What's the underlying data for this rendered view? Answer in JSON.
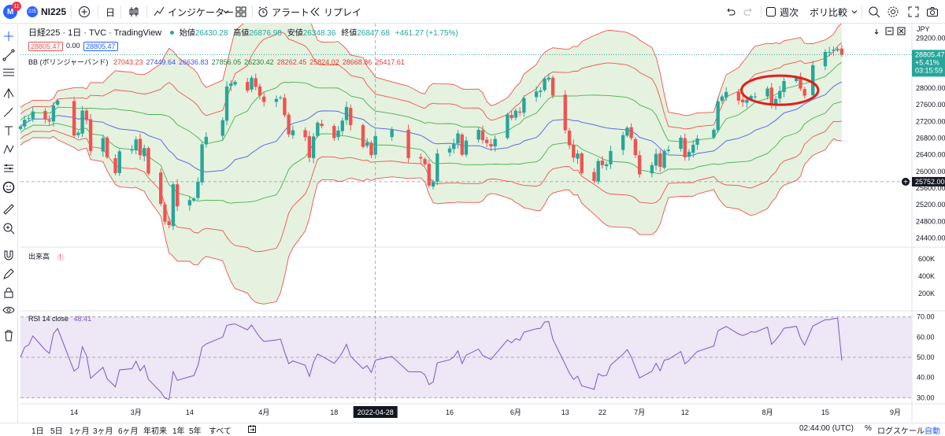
{
  "topbar": {
    "avatar_letter": "M",
    "notification_count": "11",
    "symbol_badge": "225",
    "symbol": "NI225",
    "interval": "日",
    "indicators_label": "インジケーター",
    "alert_label": "アラート",
    "replay_label": "リプレイ",
    "layout_name": "週次",
    "layout_sub": "ボリ比較"
  },
  "legend": {
    "title": "日経225 · 1日 · TVC · TradingView",
    "open_label": "始値",
    "open": "26430.28",
    "high_label": "高値",
    "high": "26876.95",
    "low_label": "安値",
    "low": "26348.36",
    "close_label": "終値",
    "close": "26847.68",
    "change": "+461.27 (+1.75%)",
    "sell_price": "28805.47",
    "spread": "0.00",
    "buy_price": "28805.47",
    "bb_label": "BB (ボリンジャーバンド)",
    "bb_values": [
      {
        "value": "27043.23",
        "color": "#e53935"
      },
      {
        "value": "27449.64",
        "color": "#3f51d8"
      },
      {
        "value": "26636.83",
        "color": "#3f51d8"
      },
      {
        "value": "27856.05",
        "color": "#2e7d32"
      },
      {
        "value": "26230.42",
        "color": "#2e7d32"
      },
      {
        "value": "28262.45",
        "color": "#e53935"
      },
      {
        "value": "25824.02",
        "color": "#e53935"
      },
      {
        "value": "28668.86",
        "color": "#e53935"
      },
      {
        "value": "25417.61",
        "color": "#e53935"
      }
    ],
    "volume_label": "出来高",
    "volume_warning": "!",
    "rsi_label": "RSI 14 close",
    "rsi_value": "48.41"
  },
  "price_axis": {
    "currency": "JPY",
    "ticks": [
      "29200.00",
      "28800.00",
      "28400.00",
      "28000.00",
      "27600.00",
      "27200.00",
      "26800.00",
      "26400.00",
      "26000.00",
      "25600.00",
      "25200.00",
      "24800.00",
      "24400.00"
    ],
    "current_price": "28805.47",
    "current_change": "+5.41%",
    "countdown": "03:15:59",
    "crosshair_price": "25752.00",
    "volume_ticks": [
      "600K",
      "400K",
      "200K"
    ],
    "rsi_ticks": [
      "70.00",
      "60.00",
      "50.00",
      "40.00",
      "30.00"
    ]
  },
  "time_axis": {
    "labels": [
      "14",
      "3月",
      "14",
      "4月",
      "18",
      "16",
      "6月",
      "13",
      "22",
      "7月",
      "12",
      "8月",
      "15",
      "9月"
    ],
    "crosshair_date": "2022-04-28"
  },
  "bottombar": {
    "ranges": [
      "1日",
      "5日",
      "1ヶ月",
      "3ヶ月",
      "6ヶ月",
      "年初来",
      "1年",
      "5年",
      "すべて"
    ],
    "clock": "02:44:00 (UTC)",
    "percent": "%",
    "log_scale": "ログスケール",
    "auto": "自動"
  },
  "colors": {
    "up": "#26a69a",
    "down": "#ef5350",
    "bb_fill": "#e5f2e0",
    "bb_outer": "#ef5350",
    "bb_mid": "#5b6ee1",
    "bb_green": "#4caf50",
    "rsi_line": "#7e57c2",
    "rsi_band": "#ede7f6",
    "annotation": "#e01f1f",
    "accent": "#2962ff"
  },
  "chart_data": [
    {
      "type": "candlestick",
      "title": "日経225 · 1日 · TVC",
      "y_unit": "JPY",
      "ylim": [
        24200,
        29550
      ],
      "x_range": [
        "2022-02-01",
        "2022-09-05"
      ],
      "x": [
        "2022-02-01",
        "2022-02-02",
        "2022-02-03",
        "2022-02-04",
        "2022-02-07",
        "2022-02-08",
        "2022-02-09",
        "2022-02-10",
        "2022-02-14",
        "2022-02-15",
        "2022-02-16",
        "2022-02-17",
        "2022-02-18",
        "2022-02-21",
        "2022-02-22",
        "2022-02-24",
        "2022-02-25",
        "2022-02-28",
        "2022-03-01",
        "2022-03-02",
        "2022-03-03",
        "2022-03-04",
        "2022-03-07",
        "2022-03-08",
        "2022-03-09",
        "2022-03-10",
        "2022-03-11",
        "2022-03-14",
        "2022-03-15",
        "2022-03-16",
        "2022-03-17",
        "2022-03-18",
        "2022-03-22",
        "2022-03-23",
        "2022-03-24",
        "2022-03-25",
        "2022-03-28",
        "2022-03-29",
        "2022-03-30",
        "2022-03-31",
        "2022-04-01",
        "2022-04-04",
        "2022-04-05",
        "2022-04-06",
        "2022-04-07",
        "2022-04-08",
        "2022-04-11",
        "2022-04-12",
        "2022-04-13",
        "2022-04-14",
        "2022-04-15",
        "2022-04-18",
        "2022-04-19",
        "2022-04-20",
        "2022-04-21",
        "2022-04-22",
        "2022-04-25",
        "2022-04-26",
        "2022-04-27",
        "2022-04-28",
        "2022-05-02",
        "2022-05-06",
        "2022-05-09",
        "2022-05-10",
        "2022-05-11",
        "2022-05-12",
        "2022-05-13",
        "2022-05-16",
        "2022-05-17",
        "2022-05-18",
        "2022-05-19",
        "2022-05-20",
        "2022-05-23",
        "2022-05-24",
        "2022-05-25",
        "2022-05-26",
        "2022-05-27",
        "2022-05-30",
        "2022-05-31",
        "2022-06-01",
        "2022-06-02",
        "2022-06-03",
        "2022-06-06",
        "2022-06-07",
        "2022-06-08",
        "2022-06-09",
        "2022-06-10",
        "2022-06-13",
        "2022-06-14",
        "2022-06-15",
        "2022-06-16",
        "2022-06-17",
        "2022-06-20",
        "2022-06-21",
        "2022-06-22",
        "2022-06-23",
        "2022-06-24",
        "2022-06-27",
        "2022-06-28",
        "2022-06-29",
        "2022-06-30",
        "2022-07-01",
        "2022-07-04",
        "2022-07-05",
        "2022-07-06",
        "2022-07-07",
        "2022-07-08",
        "2022-07-11",
        "2022-07-12",
        "2022-07-13",
        "2022-07-14",
        "2022-07-15",
        "2022-07-19",
        "2022-07-20",
        "2022-07-21",
        "2022-07-22",
        "2022-07-25",
        "2022-07-26",
        "2022-07-27",
        "2022-07-28",
        "2022-07-29",
        "2022-08-01",
        "2022-08-02",
        "2022-08-03",
        "2022-08-04",
        "2022-08-05",
        "2022-08-08",
        "2022-08-09",
        "2022-08-10",
        "2022-08-12",
        "2022-08-15",
        "2022-08-16",
        "2022-08-17",
        "2022-08-18",
        "2022-08-19"
      ],
      "close": [
        27080,
        27240,
        27280,
        27440,
        27250,
        27200,
        27580,
        27700,
        26860,
        26930,
        27460,
        27230,
        26490,
        26800,
        26340,
        25960,
        26480,
        26520,
        26770,
        26390,
        26560,
        25950,
        25220,
        24790,
        24710,
        25690,
        25160,
        25310,
        25350,
        25760,
        26650,
        26830,
        27230,
        28040,
        28110,
        28150,
        27940,
        28250,
        28030,
        27820,
        27670,
        27740,
        27780,
        27350,
        26890,
        26990,
        26820,
        26330,
        26840,
        27170,
        27090,
        26800,
        26980,
        27220,
        27550,
        27110,
        26590,
        26700,
        26390,
        26850,
        27000,
        26320,
        26310,
        26170,
        25660,
        25750,
        26430,
        26550,
        26660,
        26910,
        26400,
        26740,
        27000,
        26750,
        26680,
        26600,
        26780,
        27370,
        27280,
        27460,
        27410,
        27760,
        27920,
        27940,
        28230,
        28250,
        27820,
        26990,
        26630,
        26330,
        26430,
        25960,
        25770,
        26250,
        26150,
        26170,
        26490,
        26870,
        27050,
        26800,
        26390,
        25930,
        26150,
        26420,
        26110,
        26490,
        26520,
        26810,
        26340,
        26470,
        26640,
        26790,
        27000,
        27680,
        27800,
        27910,
        27700,
        27660,
        27720,
        27810,
        27800,
        27990,
        27590,
        27740,
        27930,
        28170,
        28250,
        27990,
        27820,
        28550,
        28870,
        28870,
        28920,
        28940,
        28800
      ],
      "series": [
        {
          "name": "BB basis",
          "last": 27449.64
        },
        {
          "name": "BB 1σ",
          "last": [
            27856.05,
            26636.83
          ]
        },
        {
          "name": "BB 2σ",
          "last": [
            28262.45,
            26230.42
          ]
        },
        {
          "name": "BB 3σ",
          "last": [
            28668.86,
            25824.02,
            25417.61
          ]
        }
      ],
      "annotations": [
        "red ellipse around early-August consolidation"
      ]
    },
    {
      "type": "line",
      "title": "RSI 14 close",
      "ylim": [
        27,
        73
      ],
      "levels": [
        70,
        50,
        30
      ],
      "last": 48.41,
      "x_ref": "same dates as price chart"
    }
  ]
}
